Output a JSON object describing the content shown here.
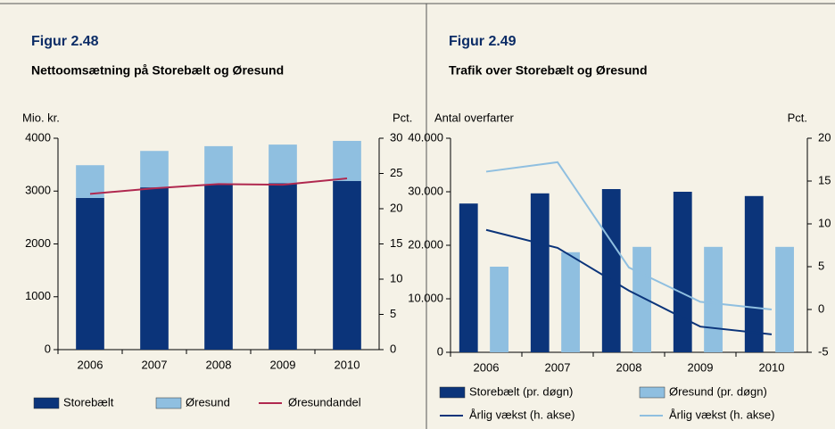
{
  "chart_data": [
    {
      "type": "bar",
      "stacked": true,
      "title": "Figur 2.48",
      "subtitle": "Nettoomsætning på Storebælt og Øresund",
      "ylabel": "Mio. kr.",
      "y2label": "Pct.",
      "categories": [
        "2006",
        "2007",
        "2008",
        "2009",
        "2010"
      ],
      "series": [
        {
          "name": "Storebælt",
          "type": "bar",
          "color": "#0b347a",
          "values": [
            2870,
            3070,
            3120,
            3150,
            3190
          ]
        },
        {
          "name": "Øresund",
          "type": "bar",
          "color": "#8fbfe0",
          "values": [
            620,
            690,
            730,
            730,
            760
          ]
        },
        {
          "name": "Øresundandel",
          "type": "line",
          "axis": "y2",
          "color": "#b0284f",
          "values": [
            22.1,
            22.9,
            23.5,
            23.4,
            24.3
          ]
        }
      ],
      "ylim": [
        0,
        4000
      ],
      "yticks": [
        0,
        1000,
        2000,
        3000,
        4000
      ],
      "y2lim": [
        0,
        30
      ],
      "y2ticks": [
        0,
        5,
        10,
        15,
        20,
        25,
        30
      ]
    },
    {
      "type": "bar",
      "stacked": false,
      "title": "Figur 2.49",
      "subtitle": "Trafik over Storebælt og Øresund",
      "ylabel": "Antal overfarter",
      "y2label": "Pct.",
      "categories": [
        "2006",
        "2007",
        "2008",
        "2009",
        "2010"
      ],
      "series": [
        {
          "name": "Storebælt (pr. døgn)",
          "type": "bar",
          "color": "#0b347a",
          "values": [
            27800,
            29700,
            30500,
            30000,
            29200
          ]
        },
        {
          "name": "Øresund (pr. døgn)",
          "type": "bar",
          "color": "#8fbfe0",
          "values": [
            16000,
            18700,
            19700,
            19700,
            19700
          ]
        },
        {
          "name": "Årlig vækst (h. akse)",
          "type": "line",
          "axis": "y2",
          "color": "#0b347a",
          "values": [
            9.3,
            7.2,
            2.2,
            -2.0,
            -2.9
          ]
        },
        {
          "name": "Årlig vækst (h. akse)",
          "type": "line",
          "axis": "y2",
          "color": "#8fbfe0",
          "values": [
            16.1,
            17.2,
            4.9,
            0.9,
            0
          ]
        }
      ],
      "ylim": [
        0,
        40000
      ],
      "yticks": [
        0,
        {
          "value": 10000,
          "label": "10.000"
        },
        {
          "value": 20000,
          "label": "20.000"
        },
        {
          "value": 30000,
          "label": "30.000"
        },
        {
          "value": 40000,
          "label": "40.000"
        }
      ],
      "y2lim": [
        -5,
        20
      ],
      "y2ticks": [
        -5,
        0,
        5,
        10,
        15,
        20
      ]
    }
  ]
}
